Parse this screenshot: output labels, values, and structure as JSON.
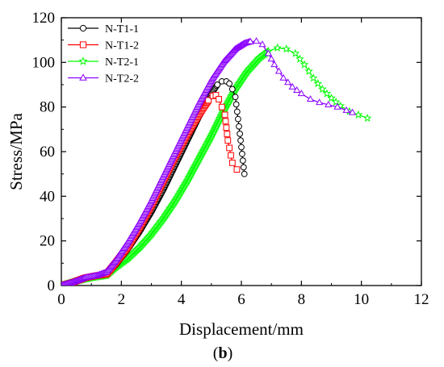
{
  "chart_data": {
    "type": "line",
    "caption_open": "(",
    "caption_letter": "b",
    "caption_close": ")",
    "xlabel": "Displacement/mm",
    "ylabel": "Stress/MPa",
    "xlim": [
      0,
      12
    ],
    "ylim": [
      0,
      120
    ],
    "xticks": [
      0,
      2,
      4,
      6,
      8,
      10,
      12
    ],
    "yticks": [
      0,
      20,
      40,
      60,
      80,
      100,
      120
    ],
    "grid": false,
    "legend_position": "top-left",
    "series": [
      {
        "name": "N-T1-1",
        "color": "#000000",
        "marker": "circle",
        "x": [
          0,
          0.4,
          0.8,
          1.2,
          1.5,
          1.8,
          2.2,
          2.6,
          3.0,
          3.4,
          3.8,
          4.2,
          4.6,
          5.0,
          5.2,
          5.35,
          5.5,
          5.6,
          5.7,
          5.8,
          5.95,
          6.1
        ],
        "y": [
          0,
          1.5,
          3.5,
          4.5,
          5,
          9,
          16,
          24,
          33,
          43,
          54,
          65,
          76,
          86,
          90,
          91.5,
          91.5,
          90.5,
          88,
          84.5,
          68,
          50
        ]
      },
      {
        "name": "N-T1-2",
        "color": "#ff0000",
        "marker": "square",
        "x": [
          0,
          0.4,
          0.8,
          1.2,
          1.5,
          1.8,
          2.2,
          2.6,
          3.0,
          3.4,
          3.8,
          4.2,
          4.6,
          4.9,
          5.05,
          5.15,
          5.25,
          5.35,
          5.45,
          5.55,
          5.7,
          5.85
        ],
        "y": [
          0,
          1.5,
          3.5,
          4.5,
          5,
          10,
          17,
          26,
          36,
          47,
          58,
          68,
          77,
          83,
          85,
          85.3,
          83.5,
          80,
          76.5,
          65,
          55,
          52
        ]
      },
      {
        "name": "N-T2-1",
        "color": "#00ff00",
        "marker": "star",
        "x": [
          0,
          0.5,
          1.0,
          1.5,
          1.8,
          2.2,
          2.6,
          3.0,
          3.4,
          3.8,
          4.2,
          4.6,
          5.0,
          5.4,
          5.8,
          6.2,
          6.6,
          6.9,
          7.2,
          7.5,
          7.8,
          8.1,
          8.4,
          8.7,
          9.0,
          9.3,
          9.6,
          9.9,
          10.2
        ],
        "y": [
          0,
          2,
          3.5,
          4.5,
          8,
          12,
          17,
          23,
          30,
          38,
          47,
          57,
          67,
          78,
          88,
          96,
          102,
          105,
          106.5,
          106,
          104,
          99,
          93,
          88,
          84,
          80.5,
          78,
          76.5,
          75
        ]
      },
      {
        "name": "N-T2-2",
        "color": "#8b00ff",
        "marker": "triangle",
        "x": [
          0,
          0.4,
          0.8,
          1.2,
          1.5,
          1.8,
          2.2,
          2.6,
          3.0,
          3.4,
          3.8,
          4.2,
          4.6,
          5.0,
          5.4,
          5.8,
          6.1,
          6.3,
          6.5,
          6.7,
          6.9,
          7.1,
          7.4,
          7.7,
          8.0,
          8.3,
          8.6,
          8.9,
          9.2,
          9.5,
          9.7
        ],
        "y": [
          0,
          1.5,
          3.5,
          4.5,
          6,
          11,
          19,
          28,
          38,
          49,
          60,
          71,
          82,
          92,
          100,
          106,
          108.5,
          109.3,
          109.5,
          108,
          104,
          99,
          93,
          89,
          86,
          83.5,
          82,
          81,
          80,
          78.5,
          77.5
        ]
      }
    ]
  }
}
